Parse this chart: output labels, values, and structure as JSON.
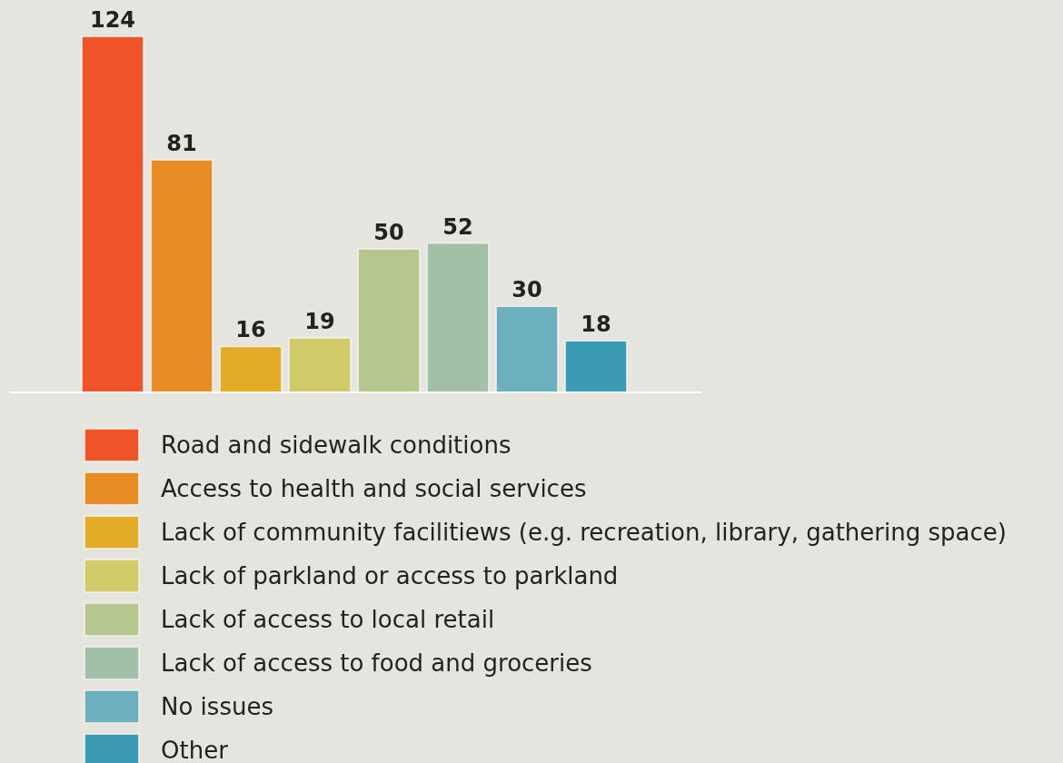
{
  "chart_data": {
    "type": "bar",
    "categories": [
      null,
      null,
      null,
      null,
      null,
      null,
      null,
      null
    ],
    "series": [
      {
        "name": "Road and sidewalk conditions",
        "color": "#ee5427",
        "values": [
          124,
          null,
          null,
          null,
          null,
          null,
          null,
          null
        ]
      },
      {
        "name": "Access to health and social services",
        "color": "#e88c26",
        "values": [
          null,
          81,
          null,
          null,
          null,
          null,
          null,
          null
        ]
      },
      {
        "name": "Lack of community facilitiews (e.g. recreation, library, gathering space)",
        "color": "#e2ac27",
        "values": [
          null,
          null,
          16,
          null,
          null,
          null,
          null,
          null
        ]
      },
      {
        "name": "Lack of parkland or access to parkland",
        "color": "#d0ca68",
        "values": [
          null,
          null,
          null,
          19,
          null,
          null,
          null,
          null
        ]
      },
      {
        "name": "Lack of access to local retail",
        "color": "#b5c68f",
        "values": [
          null,
          null,
          null,
          null,
          50,
          null,
          null,
          null
        ]
      },
      {
        "name": "Lack of access to food and groceries",
        "color": "#a2bfa8",
        "values": [
          null,
          null,
          null,
          null,
          null,
          52,
          null,
          null
        ]
      },
      {
        "name": "No issues",
        "color": "#6cafbf",
        "values": [
          null,
          null,
          null,
          null,
          null,
          null,
          30,
          null
        ]
      },
      {
        "name": "Other",
        "color": "#3b9ab4",
        "values": [
          null,
          null,
          null,
          null,
          null,
          null,
          null,
          18
        ]
      }
    ],
    "stacked": true,
    "data_labels": true,
    "legend": "bottom"
  }
}
